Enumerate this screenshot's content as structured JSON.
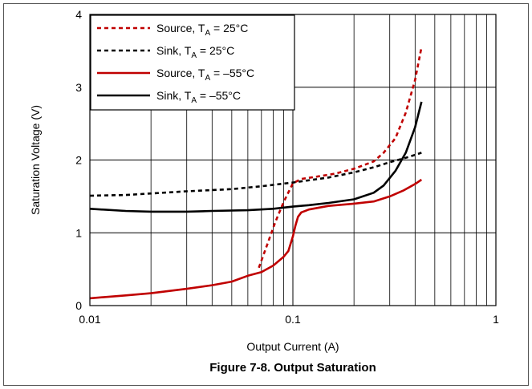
{
  "chart_data": {
    "type": "line",
    "title": "Figure 7-8. Output Saturation",
    "xlabel": "Output Current (A)",
    "ylabel": "Saturation Voltage (V)",
    "xscale": "log",
    "xlim": [
      0.01,
      1
    ],
    "ylim": [
      0,
      4
    ],
    "x_ticks": [
      0.01,
      0.1,
      1
    ],
    "x_tick_labels": [
      "0.01",
      "0.1",
      "1"
    ],
    "y_ticks": [
      0,
      1,
      2,
      3,
      4
    ],
    "y_tick_labels": [
      "0",
      "1",
      "2",
      "3",
      "4"
    ],
    "grid": true,
    "legend_position": "top-left",
    "series": [
      {
        "name": "Source, T_A = 25°C",
        "legend_main": "Source, T",
        "legend_sub": "A",
        "legend_rest": " = 25°C",
        "color": "#c00000",
        "style": "dashed",
        "points": [
          [
            0.068,
            0.52
          ],
          [
            0.075,
            0.85
          ],
          [
            0.082,
            1.15
          ],
          [
            0.09,
            1.42
          ],
          [
            0.1,
            1.68
          ],
          [
            0.11,
            1.74
          ],
          [
            0.13,
            1.77
          ],
          [
            0.16,
            1.81
          ],
          [
            0.2,
            1.88
          ],
          [
            0.25,
            1.98
          ],
          [
            0.28,
            2.1
          ],
          [
            0.32,
            2.3
          ],
          [
            0.36,
            2.65
          ],
          [
            0.4,
            3.1
          ],
          [
            0.43,
            3.55
          ]
        ]
      },
      {
        "name": "Sink, T_A = 25°C",
        "legend_main": "Sink, T",
        "legend_sub": "A",
        "legend_rest": " = 25°C",
        "color": "#000000",
        "style": "dashed",
        "points": [
          [
            0.01,
            1.51
          ],
          [
            0.015,
            1.52
          ],
          [
            0.02,
            1.54
          ],
          [
            0.03,
            1.57
          ],
          [
            0.05,
            1.6
          ],
          [
            0.07,
            1.64
          ],
          [
            0.1,
            1.69
          ],
          [
            0.15,
            1.76
          ],
          [
            0.2,
            1.83
          ],
          [
            0.25,
            1.9
          ],
          [
            0.3,
            1.97
          ],
          [
            0.35,
            2.02
          ],
          [
            0.4,
            2.07
          ],
          [
            0.43,
            2.1
          ]
        ]
      },
      {
        "name": "Source, T_A = –55°C",
        "legend_main": "Source, T",
        "legend_sub": "A",
        "legend_rest": " = –55°C",
        "color": "#c00000",
        "style": "solid",
        "points": [
          [
            0.01,
            0.1
          ],
          [
            0.015,
            0.14
          ],
          [
            0.02,
            0.17
          ],
          [
            0.03,
            0.23
          ],
          [
            0.04,
            0.28
          ],
          [
            0.05,
            0.33
          ],
          [
            0.06,
            0.41
          ],
          [
            0.07,
            0.46
          ],
          [
            0.08,
            0.55
          ],
          [
            0.09,
            0.67
          ],
          [
            0.095,
            0.75
          ],
          [
            0.1,
            0.95
          ],
          [
            0.103,
            1.1
          ],
          [
            0.106,
            1.22
          ],
          [
            0.11,
            1.28
          ],
          [
            0.12,
            1.32
          ],
          [
            0.15,
            1.37
          ],
          [
            0.2,
            1.4
          ],
          [
            0.25,
            1.43
          ],
          [
            0.3,
            1.5
          ],
          [
            0.35,
            1.58
          ],
          [
            0.4,
            1.67
          ],
          [
            0.43,
            1.73
          ]
        ]
      },
      {
        "name": "Sink, T_A = –55°C",
        "legend_main": "Sink, T",
        "legend_sub": "A",
        "legend_rest": " = –55°C",
        "color": "#000000",
        "style": "solid",
        "points": [
          [
            0.01,
            1.33
          ],
          [
            0.015,
            1.3
          ],
          [
            0.02,
            1.29
          ],
          [
            0.03,
            1.29
          ],
          [
            0.04,
            1.3
          ],
          [
            0.06,
            1.31
          ],
          [
            0.08,
            1.33
          ],
          [
            0.1,
            1.36
          ],
          [
            0.12,
            1.38
          ],
          [
            0.15,
            1.41
          ],
          [
            0.2,
            1.46
          ],
          [
            0.25,
            1.55
          ],
          [
            0.28,
            1.65
          ],
          [
            0.32,
            1.85
          ],
          [
            0.36,
            2.1
          ],
          [
            0.4,
            2.45
          ],
          [
            0.43,
            2.8
          ]
        ]
      }
    ]
  }
}
